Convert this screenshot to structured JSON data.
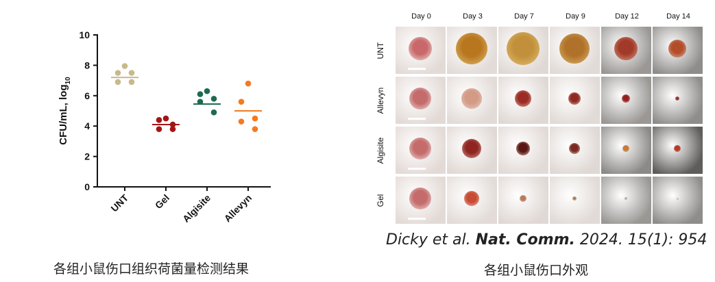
{
  "chart_data": {
    "type": "scatter",
    "ylabel": "CFU/mL, log",
    "ylabel_sub": "10",
    "ylim": [
      0,
      10
    ],
    "yticks": [
      "0",
      "2",
      "4",
      "6",
      "8",
      "10"
    ],
    "categories": [
      "UNT",
      "Gel",
      "Algisite",
      "Allevyn"
    ],
    "series": [
      {
        "color": "#c8b98a",
        "points": [
          7.95,
          7.5,
          7.5,
          6.9,
          6.9
        ],
        "mean": 7.2
      },
      {
        "color": "#a31515",
        "points": [
          4.5,
          4.4,
          4.1,
          3.8,
          3.8
        ],
        "mean": 4.1
      },
      {
        "color": "#1f6b50",
        "points": [
          6.3,
          6.1,
          5.8,
          5.6,
          4.9
        ],
        "mean": 5.45
      },
      {
        "color": "#f47a20",
        "points": [
          6.8,
          5.6,
          4.5,
          4.3,
          3.8
        ],
        "mean": 5.0
      }
    ]
  },
  "captions": {
    "chart": "各组小鼠伤口组织荷菌量检测结果",
    "photos": "各组小鼠伤口外观"
  },
  "citation": {
    "authors": "Dicky et al. ",
    "journal": "Nat. Comm.",
    "details": " 2024. 15(1): 954"
  },
  "photo_grid": {
    "days": [
      "Day 0",
      "Day 3",
      "Day 7",
      "Day 9",
      "Day 12",
      "Day 14"
    ],
    "groups": [
      "UNT",
      "Allevyn",
      "Algisite",
      "Gel"
    ]
  }
}
